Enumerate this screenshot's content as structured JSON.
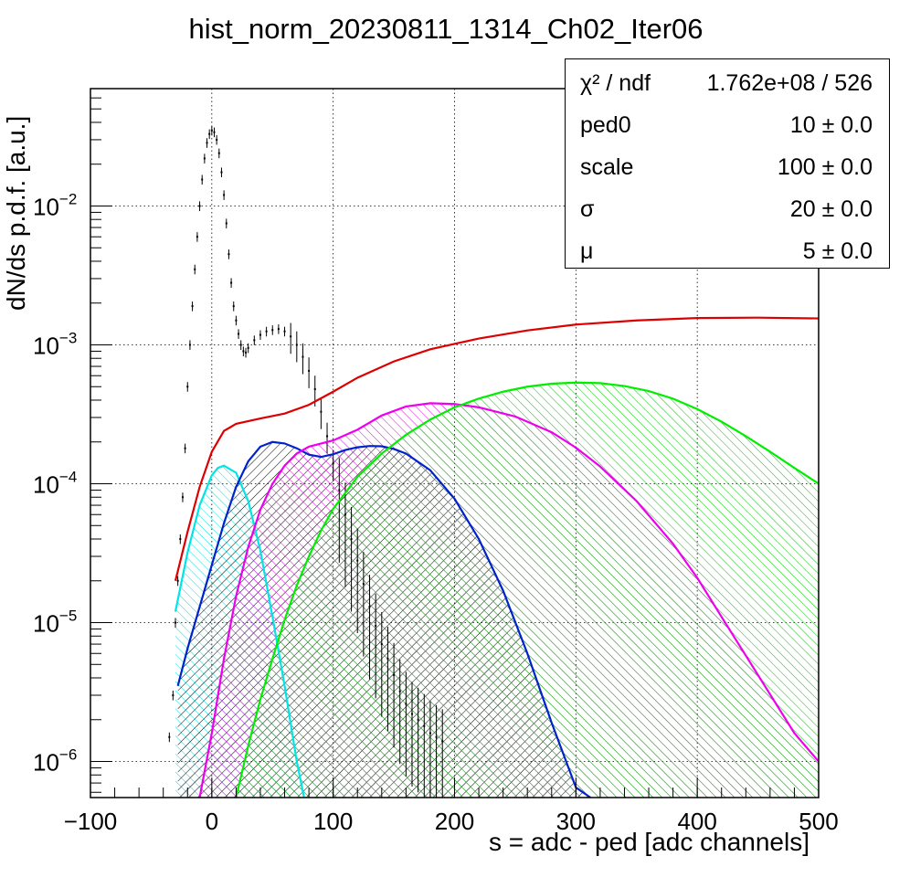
{
  "chart_data": {
    "type": "line",
    "title": "hist_norm_20230811_1314_Ch02_Iter06",
    "xlabel": "s = adc - ped [adc channels]",
    "ylabel": "dN/ds p.d.f. [a.u.]",
    "xlim": [
      -100,
      500
    ],
    "ylim": [
      5.5e-07,
      0.07
    ],
    "y_scale": "log",
    "x_ticks": [
      -100,
      0,
      100,
      200,
      300,
      400,
      500
    ],
    "y_ticks": [
      {
        "value": 1e-06,
        "base": "10",
        "exp": "−6"
      },
      {
        "value": 1e-05,
        "base": "10",
        "exp": "−5"
      },
      {
        "value": 0.0001,
        "base": "10",
        "exp": "−4"
      },
      {
        "value": 0.001,
        "base": "10",
        "exp": "−3"
      },
      {
        "value": 0.01,
        "base": "10",
        "exp": "−2"
      }
    ],
    "grid": true,
    "stats_box": [
      {
        "name": "χ² / ndf",
        "value": "1.762e+08 / 526"
      },
      {
        "name": "ped0",
        "value": "10 ± 0.0"
      },
      {
        "name": "scale",
        "value": "100 ± 0.0"
      },
      {
        "name": "σ",
        "value": "20 ± 0.0"
      },
      {
        "name": "μ",
        "value": "5 ± 0.0"
      }
    ],
    "series": [
      {
        "color": "#dd0000",
        "fill": "none",
        "x": [
          -30,
          -20,
          -10,
          0,
          10,
          20,
          40,
          60,
          80,
          100,
          120,
          150,
          180,
          220,
          260,
          300,
          350,
          400,
          450,
          500
        ],
        "y": [
          2e-05,
          4.5e-05,
          9.5e-05,
          0.00017,
          0.00024,
          0.00027,
          0.000295,
          0.00032,
          0.00037,
          0.00046,
          0.00058,
          0.00076,
          0.00093,
          0.00111,
          0.00127,
          0.0014,
          0.0015,
          0.00156,
          0.00157,
          0.00155
        ]
      },
      {
        "color": "#00e5e5",
        "fill": "hatch",
        "x": [
          -30,
          -20,
          -10,
          0,
          5,
          10,
          20,
          30,
          40,
          50,
          60,
          70,
          76
        ],
        "y": [
          1.2e-05,
          3.2e-05,
          7e-05,
          0.000115,
          0.00013,
          0.000135,
          0.00012,
          7.5e-05,
          3.3e-05,
          1.1e-05,
          3.5e-06,
          1e-06,
          5.5e-07
        ]
      },
      {
        "color": "#0022cc",
        "fill": "hatch",
        "x": [
          -28,
          -20,
          -10,
          0,
          10,
          20,
          30,
          40,
          50,
          60,
          70,
          80,
          90,
          100,
          110,
          120,
          130,
          140,
          150,
          160,
          180,
          200,
          220,
          240,
          260,
          280,
          300,
          312
        ],
        "y": [
          3.5e-06,
          6.5e-06,
          1.3e-05,
          2.6e-05,
          5.2e-05,
          9.5e-05,
          0.000145,
          0.000185,
          0.0002,
          0.000195,
          0.00018,
          0.000162,
          0.000156,
          0.000163,
          0.000175,
          0.000183,
          0.000187,
          0.000186,
          0.000178,
          0.000165,
          0.000125,
          7.8e-05,
          4e-05,
          1.7e-05,
          6e-06,
          1.9e-06,
          6.5e-07,
          5.5e-07
        ]
      },
      {
        "color": "#ee00ee",
        "fill": "hatch",
        "x": [
          -10,
          0,
          10,
          20,
          30,
          40,
          50,
          60,
          70,
          80,
          100,
          120,
          140,
          160,
          180,
          200,
          220,
          250,
          280,
          300,
          320,
          350,
          380,
          400,
          420,
          450,
          480,
          500
        ],
        "y": [
          5.5e-07,
          1.6e-06,
          5.5e-06,
          1.55e-05,
          3.5e-05,
          6.5e-05,
          0.0001,
          0.000135,
          0.000165,
          0.000185,
          0.000205,
          0.000245,
          0.00031,
          0.00036,
          0.00038,
          0.000375,
          0.000355,
          0.000305,
          0.000235,
          0.000182,
          0.000133,
          7.5e-05,
          3.7e-05,
          2.1e-05,
          1.1e-05,
          4.2e-06,
          1.6e-06,
          1e-06
        ]
      },
      {
        "color": "#00ee00",
        "fill": "hatch",
        "x": [
          20,
          30,
          40,
          50,
          60,
          70,
          80,
          90,
          100,
          120,
          140,
          160,
          180,
          200,
          220,
          240,
          260,
          280,
          300,
          320,
          340,
          360,
          380,
          400,
          420,
          440,
          460,
          480,
          500
        ],
        "y": [
          5.5e-07,
          1.3e-06,
          2.8e-06,
          5.5e-06,
          1.05e-05,
          1.85e-05,
          3e-05,
          4.6e-05,
          6.6e-05,
          0.000112,
          0.000165,
          0.000225,
          0.00029,
          0.000355,
          0.00041,
          0.00046,
          0.0005,
          0.000525,
          0.000535,
          0.00053,
          0.000505,
          0.000465,
          0.00041,
          0.000345,
          0.00028,
          0.00022,
          0.00017,
          0.00013,
          0.0001
        ]
      }
    ],
    "data_points": {
      "color": "#000000",
      "x": [
        -35,
        -32,
        -30,
        -28,
        -26,
        -24,
        -22,
        -20,
        -18,
        -16,
        -14,
        -12,
        -10,
        -8,
        -6,
        -4,
        -2,
        0,
        2,
        4,
        6,
        8,
        10,
        12,
        14,
        16,
        18,
        20,
        22,
        24,
        26,
        28,
        30,
        35,
        40,
        45,
        50,
        55,
        60,
        65,
        70,
        75,
        80,
        85,
        90,
        95,
        100,
        105,
        110,
        115,
        120,
        125,
        130,
        135,
        140,
        145,
        150,
        155,
        160,
        165,
        170,
        175,
        180,
        185,
        190
      ],
      "y": [
        1.5e-06,
        3e-06,
        1e-05,
        2e-05,
        4e-05,
        8e-05,
        0.00018,
        0.0005,
        0.001,
        0.0019,
        0.0035,
        0.006,
        0.01,
        0.0155,
        0.022,
        0.0285,
        0.033,
        0.035,
        0.034,
        0.03,
        0.024,
        0.0175,
        0.012,
        0.0075,
        0.0045,
        0.0028,
        0.0019,
        0.0015,
        0.0012,
        0.001,
        0.0009,
        0.00088,
        0.00095,
        0.00108,
        0.00118,
        0.00125,
        0.00128,
        0.0013,
        0.00125,
        0.00115,
        0.001,
        0.00082,
        0.00065,
        0.00048,
        0.00033,
        0.00022,
        0.00014,
        9e-05,
        6e-05,
        4e-05,
        2.8e-05,
        1.9e-05,
        1.3e-05,
        9.5e-06,
        7e-06,
        5.5e-06,
        4.2e-06,
        3.2e-06,
        2.6e-06,
        2.2e-06,
        2e-06,
        1.8e-06,
        1.6e-06,
        1.5e-06,
        1.4e-06
      ]
    }
  }
}
